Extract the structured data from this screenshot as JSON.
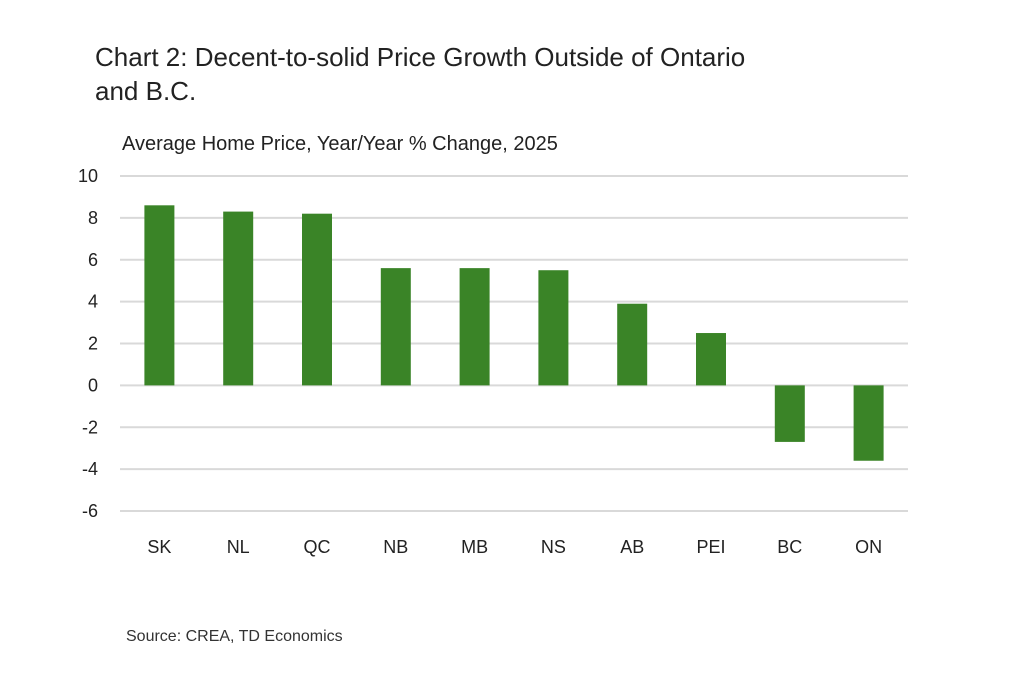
{
  "chart_data": {
    "type": "bar",
    "title": "Chart 2: Decent-to-solid Price Growth Outside of Ontario and B.C.",
    "subtitle": "Average Home Price, Year/Year % Change, 2025",
    "xlabel": "",
    "ylabel": "",
    "categories": [
      "SK",
      "NL",
      "QC",
      "NB",
      "MB",
      "NS",
      "AB",
      "PEI",
      "BC",
      "ON"
    ],
    "values": [
      8.6,
      8.3,
      8.2,
      5.6,
      5.6,
      5.5,
      3.9,
      2.5,
      -2.7,
      -3.6
    ],
    "ylim": [
      -6,
      10
    ],
    "yticks": [
      10,
      8,
      6,
      4,
      2,
      0,
      -2,
      -4,
      -6
    ],
    "grid": true,
    "legend": "none",
    "bar_color": "#3a8427",
    "grid_color": "#d9d9d9",
    "source": "Source: CREA, TD Economics"
  }
}
